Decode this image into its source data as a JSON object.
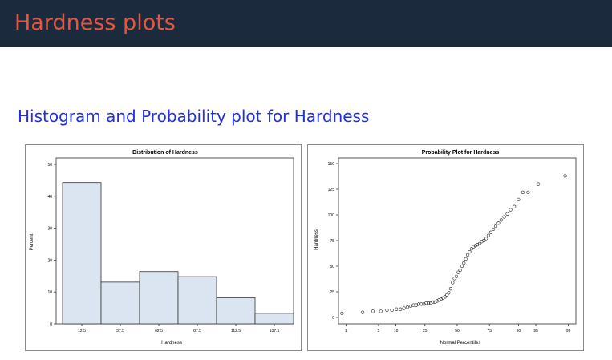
{
  "header": {
    "title": "Hardness plots"
  },
  "section": {
    "title": "Histogram and Probability plot for Hardness"
  },
  "colors": {
    "header_bg": "#1c2a3e",
    "header_text": "#e8553f",
    "subtitle_text": "#1f2fe0",
    "bar_fill": "#dbe4f1",
    "bar_stroke": "#333333"
  },
  "chart_data": [
    {
      "type": "bar",
      "title": "Distribution of Hardness",
      "xlabel": "Hardness",
      "ylabel": "Percent",
      "categories": [
        "12.5",
        "37.5",
        "62.5",
        "87.5",
        "112.5",
        "137.5"
      ],
      "values": [
        44.3,
        13.1,
        16.4,
        14.8,
        8.2,
        3.3
      ],
      "ylim": [
        0,
        50
      ],
      "yticks": [
        "0",
        "10",
        "20",
        "30",
        "40",
        "50"
      ]
    },
    {
      "type": "scatter",
      "title": "Probability Plot for Hardness",
      "xlabel": "Normal Percentiles",
      "ylabel": "Hardness",
      "scale": "normal-probability",
      "xticks": [
        "1",
        "5",
        "10",
        "25",
        "50",
        "75",
        "90",
        "95",
        "99"
      ],
      "yticks": [
        "0",
        "25",
        "50",
        "75",
        "100",
        "125",
        "150"
      ],
      "ylim": [
        0,
        150
      ],
      "points": [
        [
          0.8,
          4
        ],
        [
          2.4,
          5
        ],
        [
          3.9,
          6
        ],
        [
          5.5,
          6
        ],
        [
          7.1,
          7
        ],
        [
          8.6,
          7
        ],
        [
          10.2,
          8
        ],
        [
          11.8,
          8
        ],
        [
          13.3,
          9
        ],
        [
          14.9,
          10
        ],
        [
          16.5,
          11
        ],
        [
          18.0,
          12
        ],
        [
          19.6,
          12
        ],
        [
          21.1,
          13
        ],
        [
          22.7,
          13
        ],
        [
          24.3,
          13
        ],
        [
          25.8,
          14
        ],
        [
          27.4,
          14
        ],
        [
          29.0,
          14
        ],
        [
          30.5,
          15
        ],
        [
          32.1,
          15
        ],
        [
          33.6,
          16
        ],
        [
          35.2,
          17
        ],
        [
          36.8,
          18
        ],
        [
          38.3,
          19
        ],
        [
          39.9,
          20
        ],
        [
          41.5,
          22
        ],
        [
          43.0,
          24
        ],
        [
          44.6,
          28
        ],
        [
          46.2,
          34
        ],
        [
          47.7,
          38
        ],
        [
          49.3,
          40
        ],
        [
          50.9,
          44
        ],
        [
          52.4,
          46
        ],
        [
          54.0,
          50
        ],
        [
          55.5,
          53
        ],
        [
          57.1,
          57
        ],
        [
          58.7,
          61
        ],
        [
          60.2,
          64
        ],
        [
          61.8,
          67
        ],
        [
          63.4,
          69
        ],
        [
          64.9,
          70
        ],
        [
          66.5,
          71
        ],
        [
          68.1,
          72
        ],
        [
          69.6,
          74
        ],
        [
          71.2,
          75
        ],
        [
          72.8,
          77
        ],
        [
          74.3,
          80
        ],
        [
          75.9,
          83
        ],
        [
          77.5,
          86
        ],
        [
          79.0,
          89
        ],
        [
          80.6,
          92
        ],
        [
          82.1,
          95
        ],
        [
          83.7,
          98
        ],
        [
          85.3,
          101
        ],
        [
          86.8,
          105
        ],
        [
          88.4,
          108
        ],
        [
          90.0,
          115
        ],
        [
          91.5,
          122
        ],
        [
          93.1,
          122
        ],
        [
          95.5,
          130
        ],
        [
          98.8,
          138
        ]
      ]
    }
  ]
}
